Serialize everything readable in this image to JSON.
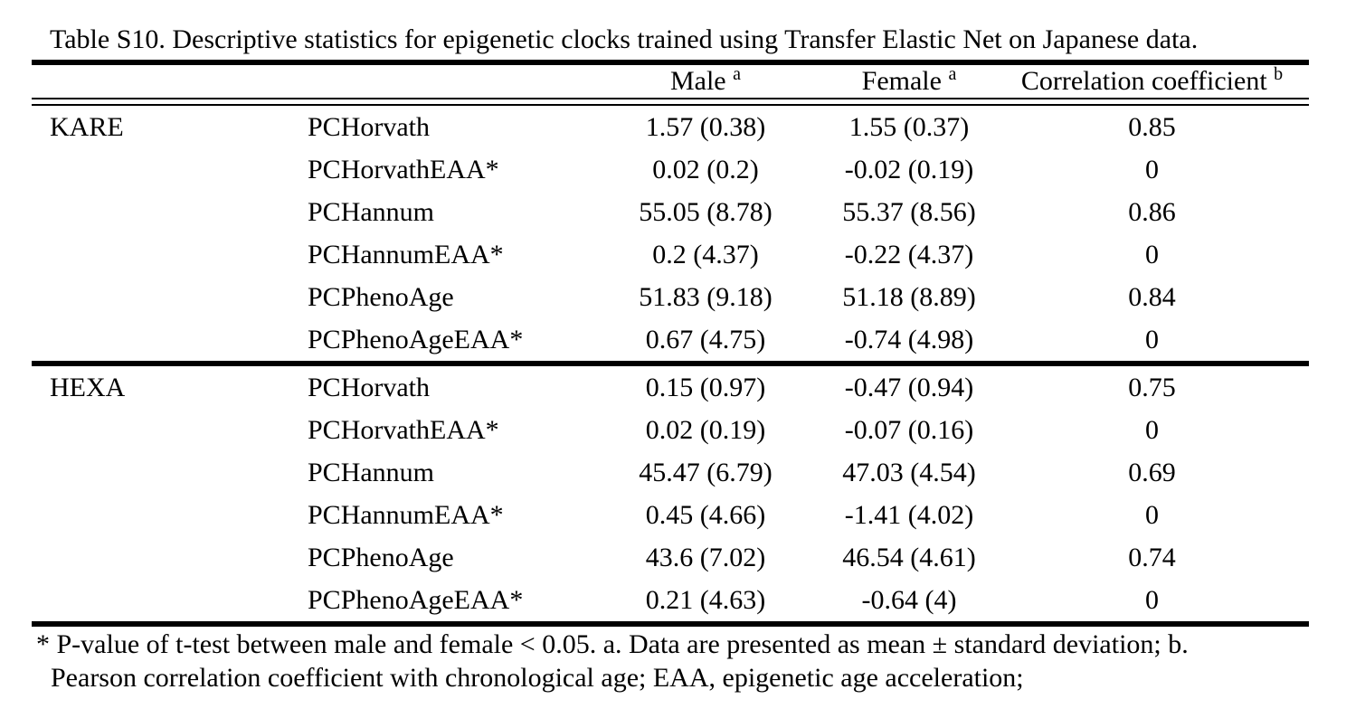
{
  "title": "Table S10. Descriptive statistics for epigenetic clocks trained using Transfer Elastic Net on Japanese data.",
  "header": {
    "male": "Male",
    "male_sup": "a",
    "female": "Female",
    "female_sup": "a",
    "corr": "Correlation coefficient",
    "corr_sup": "b"
  },
  "sections": [
    {
      "group": "KARE",
      "rows": [
        {
          "clock": "PCHorvath",
          "male": "1.57 (0.38)",
          "female": "1.55 (0.37)",
          "corr": "0.85"
        },
        {
          "clock": "PCHorvathEAA*",
          "male": "0.02 (0.2)",
          "female": "-0.02 (0.19)",
          "corr": "0"
        },
        {
          "clock": "PCHannum",
          "male": "55.05 (8.78)",
          "female": "55.37 (8.56)",
          "corr": "0.86"
        },
        {
          "clock": "PCHannumEAA*",
          "male": "0.2 (4.37)",
          "female": "-0.22 (4.37)",
          "corr": "0"
        },
        {
          "clock": "PCPhenoAge",
          "male": "51.83 (9.18)",
          "female": "51.18 (8.89)",
          "corr": "0.84"
        },
        {
          "clock": "PCPhenoAgeEAA*",
          "male": "0.67 (4.75)",
          "female": "-0.74 (4.98)",
          "corr": "0"
        }
      ]
    },
    {
      "group": "HEXA",
      "rows": [
        {
          "clock": "PCHorvath",
          "male": "0.15 (0.97)",
          "female": "-0.47 (0.94)",
          "corr": "0.75"
        },
        {
          "clock": "PCHorvathEAA*",
          "male": "0.02 (0.19)",
          "female": "-0.07 (0.16)",
          "corr": "0"
        },
        {
          "clock": "PCHannum",
          "male": "45.47 (6.79)",
          "female": "47.03 (4.54)",
          "corr": "0.69"
        },
        {
          "clock": "PCHannumEAA*",
          "male": "0.45 (4.66)",
          "female": "-1.41 (4.02)",
          "corr": "0"
        },
        {
          "clock": "PCPhenoAge",
          "male": "43.6 (7.02)",
          "female": "46.54 (4.61)",
          "corr": "0.74"
        },
        {
          "clock": "PCPhenoAgeEAA*",
          "male": "0.21 (4.63)",
          "female": "-0.64 (4)",
          "corr": "0"
        }
      ]
    }
  ],
  "footnote": {
    "line1": "* P-value of t-test between male and female < 0.05. a. Data are presented as mean ± standard deviation; b.",
    "line2": "Pearson correlation coefficient with chronological age; EAA, epigenetic age acceleration;"
  },
  "colors": {
    "text": "#000000",
    "background": "#ffffff",
    "rule": "#000000"
  }
}
